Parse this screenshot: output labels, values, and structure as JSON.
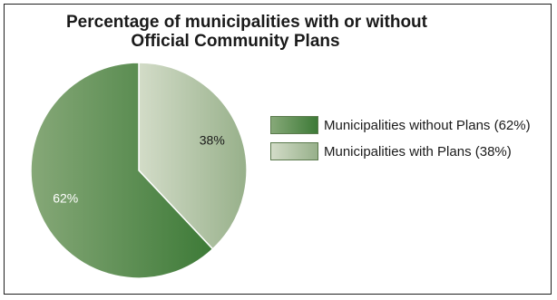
{
  "chart_data": {
    "type": "pie",
    "title_lines": [
      "Percentage of municipalities with or without",
      "Official Community Plans"
    ],
    "slices": [
      {
        "label": "Municipalities with Plans (38%)",
        "value": 38,
        "display": "38%",
        "color_light": "#d3dcc8",
        "color_dark": "#97b08a",
        "label_color": "#1a1a1a"
      },
      {
        "label": "Municipalities without Plans (62%)",
        "value": 62,
        "display": "62%",
        "color_light": "#86a878",
        "color_dark": "#3d7a37",
        "label_color": "#ffffff"
      }
    ],
    "legend": [
      {
        "label": "Municipalities without Plans (62%)",
        "color_light": "#86a878",
        "color_dark": "#3d7a37"
      },
      {
        "label": "Municipalities with Plans (38%)",
        "color_light": "#d3dcc8",
        "color_dark": "#97b08a"
      }
    ],
    "legend_position": "right",
    "edge_color": "#ffffff"
  }
}
